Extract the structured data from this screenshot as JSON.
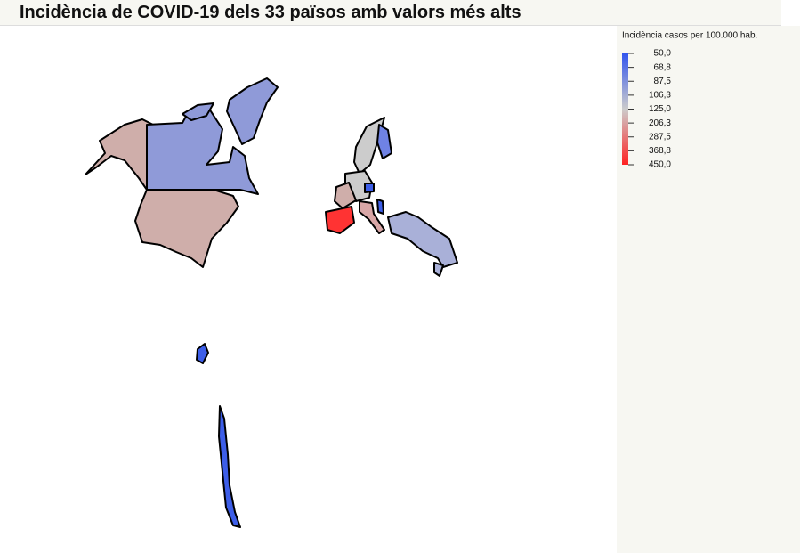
{
  "title": "Incidència de COVID-19 dels 33 països amb valors més alts",
  "legend": {
    "title": "Incidència casos per 100.000 hab.",
    "ticks": [
      {
        "value": 50,
        "label": "50,0"
      },
      {
        "value": 68.8,
        "label": "68,8"
      },
      {
        "value": 87.5,
        "label": "87,5"
      },
      {
        "value": 106.3,
        "label": "106,3"
      },
      {
        "value": 125,
        "label": "125,0"
      },
      {
        "value": 206.3,
        "label": "206,3"
      },
      {
        "value": 287.5,
        "label": "287,5"
      },
      {
        "value": 368.8,
        "label": "368,8"
      },
      {
        "value": 450,
        "label": "450,0"
      }
    ],
    "colors": [
      "#3355ee",
      "#cccccc",
      "#ff2222"
    ]
  }
}
